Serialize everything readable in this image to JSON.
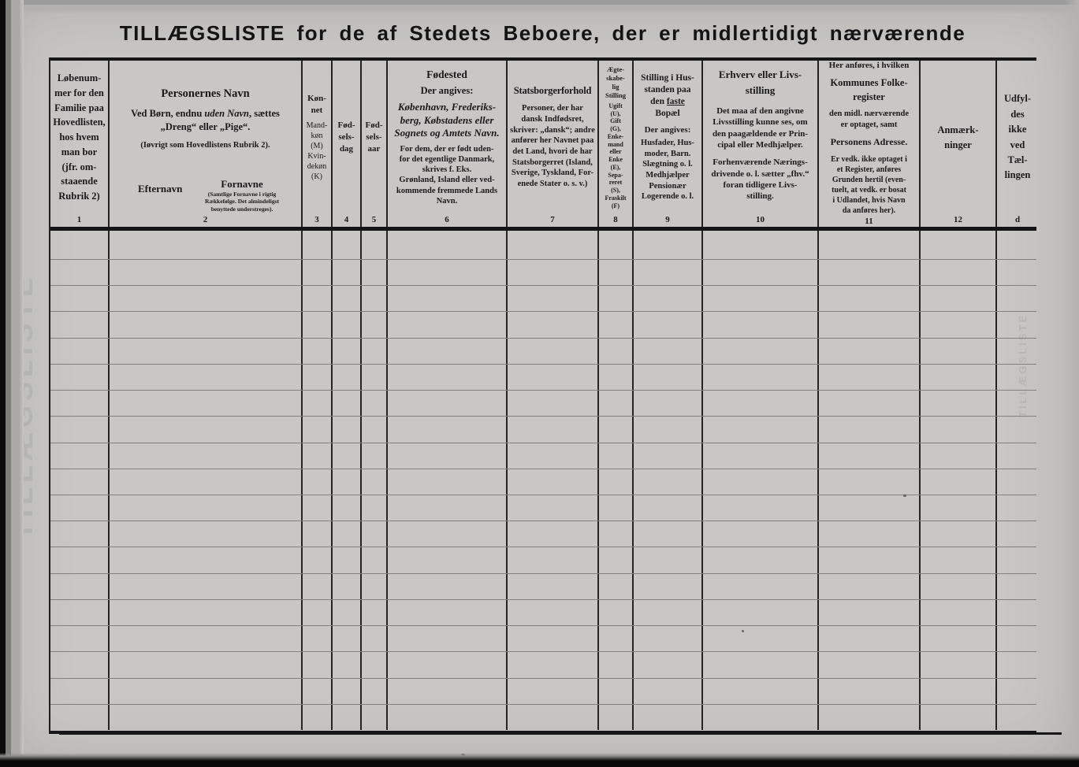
{
  "page": {
    "title": "TILLÆGSLISTE for de af Stedets Beboere, der er midlertidigt nærværende",
    "ghost_text": "TILLÆGSLISTE"
  },
  "grid": {
    "rows": 19,
    "cols": 13
  },
  "columns": {
    "c1": {
      "desc": "Løbenum-\nmer for den\nFamilie paa\nHovedlisten,\nhos hvem\nman bor\n(jfr. om-\nstaaende\nRubrik 2)",
      "num": "1"
    },
    "c2": {
      "title": "Personernes Navn",
      "line1_a": "Ved Børn, endnu ",
      "line1_b": "uden Navn",
      "line1_c": ", sættes",
      "line2": "„Dreng“ eller „Pige“.",
      "note": "(Iøvrigt som Hovedlistens Rubrik 2).",
      "efternavn": "Efternavn",
      "fornavne": "Fornavne",
      "fornavne_note": "(Samtlige Fornavne i rigtig\nRækkefølge. Det almindeligst\nbenyttede understreges).",
      "num": "2"
    },
    "c3": {
      "title": "Køn-\nnet",
      "desc": "Mand-\nkøn\n(M)\nKvin-\ndekøn\n(K)",
      "num": "3"
    },
    "c4": {
      "title": "Fød-\nsels-\ndag",
      "num": "4"
    },
    "c5": {
      "title": "Fød-\nsels-\naar",
      "num": "5"
    },
    "c6": {
      "title": "Fødested",
      "sub": "Der angives:",
      "italic_block": "København, Frederiks-\nberg, Købstadens eller\nSognets og Amtets Navn.",
      "desc": "For dem, der er født uden-\nfor det egentlige Danmark,\nskrives f. Eks.\nGrønland, Island eller ved-\nkommende fremmede Lands\nNavn.",
      "num": "6"
    },
    "c7": {
      "title": "Statsborgerforhold",
      "desc": "Personer, der har\ndansk Indfødsret,\nskriver: „dansk“; andre\nanfører her Navnet paa\ndet Land, hvori de har\nStatsborgerret (Island,\nSverige, Tyskland, For-\nenede Stater o. s. v.)",
      "num": "7"
    },
    "c8": {
      "title": "Ægte-\nskabe-\nlig\nStilling",
      "desc": "Ugift\n(U),\nGift\n(G),\nEnke-\nmand\neller\nEnke\n(E),\nSepa-\nreret\n(S),\nFraskilt\n(F)",
      "num": "8"
    },
    "c9": {
      "title_a": "Stilling i Hus-\nstanden paa\nden ",
      "title_b": "faste",
      "title_c": "\nBopæl",
      "sub": "Der angives:",
      "desc": "Husfader, Hus-\nmoder, Barn.\nSlægtning o. l.\nMedhjælper\nPensionær\nLogerende o. l.",
      "num": "9"
    },
    "c10": {
      "title": "Erhverv eller Livs-\nstilling",
      "desc1": "Det maa af den angivne\nLivsstilling kunne ses, om\nden paagældende er Prin-\ncipal eller Medhjælper.",
      "desc2": "Forhenværende Nærings-\ndrivende o. l. sætter „fhv.“\nforan tidligere Livs-\nstilling.",
      "num": "10"
    },
    "c11": {
      "intro": "Her anføres, i hvilken",
      "title1": "Kommunes Folke-\nregister",
      "mid": "den midl. nærværende\ner optaget, samt",
      "title2": "Personens Adresse.",
      "desc": "Er vedk. ikke optaget i\net Register, anføres\nGrunden hertil (even-\ntuelt, at vedk. er bosat\ni Udlandet, hvis Navn\nda anføres her).",
      "num": "11"
    },
    "c12": {
      "title": "Anmærk-\nninger",
      "num": "12"
    },
    "c13": {
      "title": "Udfyl-\ndes\nikke\nved\nTæl-\nlingen",
      "num": "d"
    }
  }
}
